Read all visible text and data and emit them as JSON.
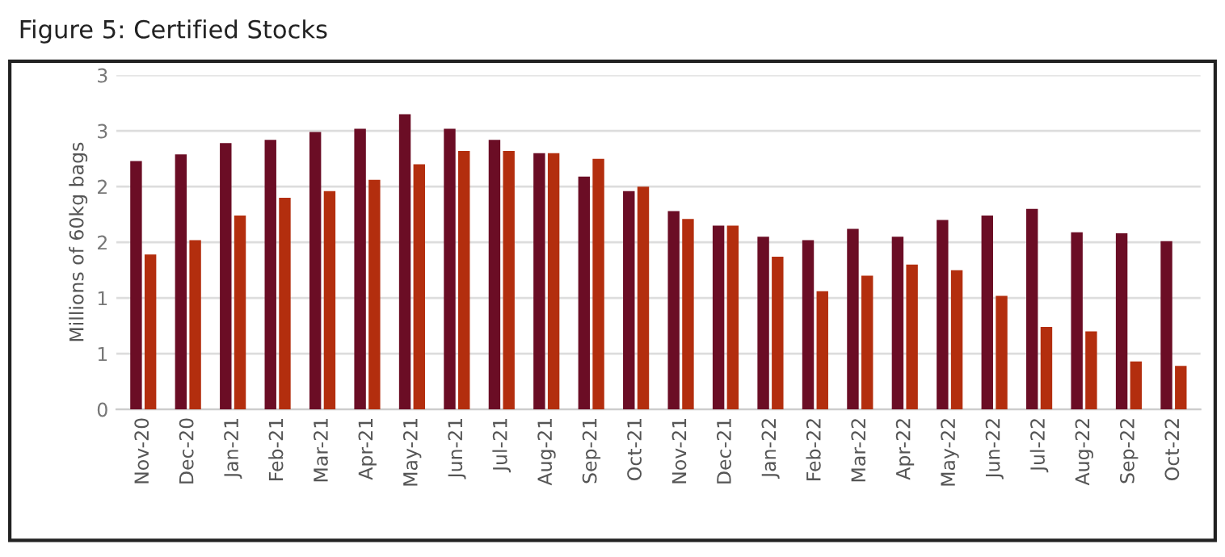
{
  "chart_data": {
    "type": "bar",
    "title": "Figure 5: Certified Stocks",
    "ylabel": "Millions of 60kg bags",
    "categories": [
      "Nov-20",
      "Dec-20",
      "Jan-21",
      "Feb-21",
      "Mar-21",
      "Apr-21",
      "May-21",
      "Jun-21",
      "Jul-21",
      "Aug-21",
      "Sep-21",
      "Oct-21",
      "Nov-21",
      "Dec-21",
      "Jan-22",
      "Feb-22",
      "Mar-22",
      "Apr-22",
      "May-22",
      "Jun-22",
      "Jul-22",
      "Aug-22",
      "Sep-22",
      "Oct-22"
    ],
    "series": [
      {
        "color": "#6b0d25",
        "values": [
          2.23,
          2.29,
          2.39,
          2.42,
          2.49,
          2.52,
          2.65,
          2.52,
          2.42,
          2.3,
          2.09,
          1.96,
          1.78,
          1.65,
          1.55,
          1.52,
          1.62,
          1.55,
          1.7,
          1.74,
          1.8,
          1.59,
          1.58,
          1.51
        ]
      },
      {
        "color": "#b32e0e",
        "values": [
          1.39,
          1.52,
          1.74,
          1.9,
          1.96,
          2.06,
          2.2,
          2.32,
          2.32,
          2.3,
          2.25,
          2.0,
          1.71,
          1.65,
          1.37,
          1.06,
          1.2,
          1.3,
          1.25,
          1.02,
          0.74,
          0.7,
          0.43,
          0.39
        ]
      }
    ],
    "ylim": [
      0,
      3
    ],
    "yticks": [
      0,
      {
        "value": 0.5,
        "label": "1"
      },
      1,
      {
        "value": 1.5,
        "label": "2"
      },
      2,
      {
        "value": 2.5,
        "label": "3"
      },
      3
    ],
    "grid": "y"
  }
}
